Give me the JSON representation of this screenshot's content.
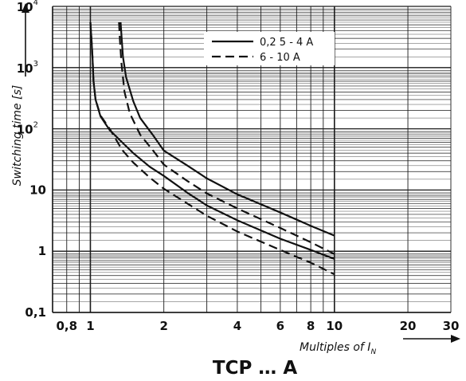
{
  "chart_data": {
    "type": "line",
    "title": "TCP … A",
    "xlabel": "Multiples of I",
    "xlabel_subscript": "N",
    "ylabel": "Switching time [s]",
    "x_scale": "log",
    "y_scale": "log",
    "xlim": [
      0.7,
      30
    ],
    "ylim": [
      0.1,
      10000
    ],
    "grid": true,
    "legend_position": "top-right",
    "x_ticks": [
      {
        "value": 0.8,
        "label": "0,8"
      },
      {
        "value": 1,
        "label": "1"
      },
      {
        "value": 2,
        "label": "2"
      },
      {
        "value": 4,
        "label": "4"
      },
      {
        "value": 6,
        "label": "6"
      },
      {
        "value": 8,
        "label": "8"
      },
      {
        "value": 10,
        "label": "10"
      },
      {
        "value": 20,
        "label": "20"
      },
      {
        "value": 30,
        "label": "30"
      }
    ],
    "y_ticks": [
      {
        "value": 0.1,
        "label": "0,1"
      },
      {
        "value": 1,
        "label": "1"
      },
      {
        "value": 10,
        "label": "10"
      },
      {
        "value": 100,
        "label": "10",
        "exp": "2"
      },
      {
        "value": 1000,
        "label": "10",
        "exp": "3"
      },
      {
        "value": 10000,
        "label": "10",
        "exp": "4"
      }
    ],
    "series": [
      {
        "name": "0,2 5 - 4 A",
        "style": "solid",
        "color": "#111111",
        "curves": [
          [
            [
              1.0,
              5500
            ],
            [
              1.01,
              3000
            ],
            [
              1.02,
              1500
            ],
            [
              1.03,
              600
            ],
            [
              1.05,
              300
            ],
            [
              1.1,
              160
            ],
            [
              1.2,
              95
            ],
            [
              1.35,
              60
            ],
            [
              1.5,
              40
            ],
            [
              1.75,
              24
            ],
            [
              2.0,
              17
            ],
            [
              2.5,
              9
            ],
            [
              3.0,
              5.6
            ],
            [
              4.0,
              3.2
            ],
            [
              6.0,
              1.6
            ],
            [
              8.0,
              1.05
            ],
            [
              10.0,
              0.75
            ]
          ],
          [
            [
              1.33,
              5500
            ],
            [
              1.34,
              3500
            ],
            [
              1.36,
              1500
            ],
            [
              1.4,
              700
            ],
            [
              1.5,
              280
            ],
            [
              1.6,
              150
            ],
            [
              1.8,
              80
            ],
            [
              2.0,
              44
            ],
            [
              2.5,
              25
            ],
            [
              3.0,
              15.5
            ],
            [
              4.0,
              8.5
            ],
            [
              6.0,
              4.3
            ],
            [
              8.0,
              2.6
            ],
            [
              10.0,
              1.8
            ]
          ]
        ]
      },
      {
        "name": "6 - 10 A",
        "style": "dashed",
        "color": "#111111",
        "curves": [
          [
            [
              1.0,
              5500
            ],
            [
              1.01,
              3000
            ],
            [
              1.02,
              1500
            ],
            [
              1.03,
              600
            ],
            [
              1.05,
              300
            ],
            [
              1.1,
              165
            ],
            [
              1.2,
              100
            ],
            [
              1.35,
              45
            ],
            [
              1.5,
              28
            ],
            [
              1.75,
              16
            ],
            [
              2.0,
              10.5
            ],
            [
              2.5,
              6
            ],
            [
              3.0,
              3.8
            ],
            [
              4.0,
              2.1
            ],
            [
              6.0,
              1.05
            ],
            [
              8.0,
              0.65
            ],
            [
              10.0,
              0.42
            ]
          ],
          [
            [
              1.31,
              5500
            ],
            [
              1.32,
              3000
            ],
            [
              1.34,
              1200
            ],
            [
              1.38,
              400
            ],
            [
              1.45,
              180
            ],
            [
              1.6,
              80
            ],
            [
              1.8,
              45
            ],
            [
              2.0,
              26
            ],
            [
              2.5,
              14
            ],
            [
              3.0,
              8.8
            ],
            [
              4.0,
              5
            ],
            [
              6.0,
              2.4
            ],
            [
              8.0,
              1.4
            ],
            [
              10.0,
              0.9
            ]
          ]
        ]
      }
    ]
  }
}
